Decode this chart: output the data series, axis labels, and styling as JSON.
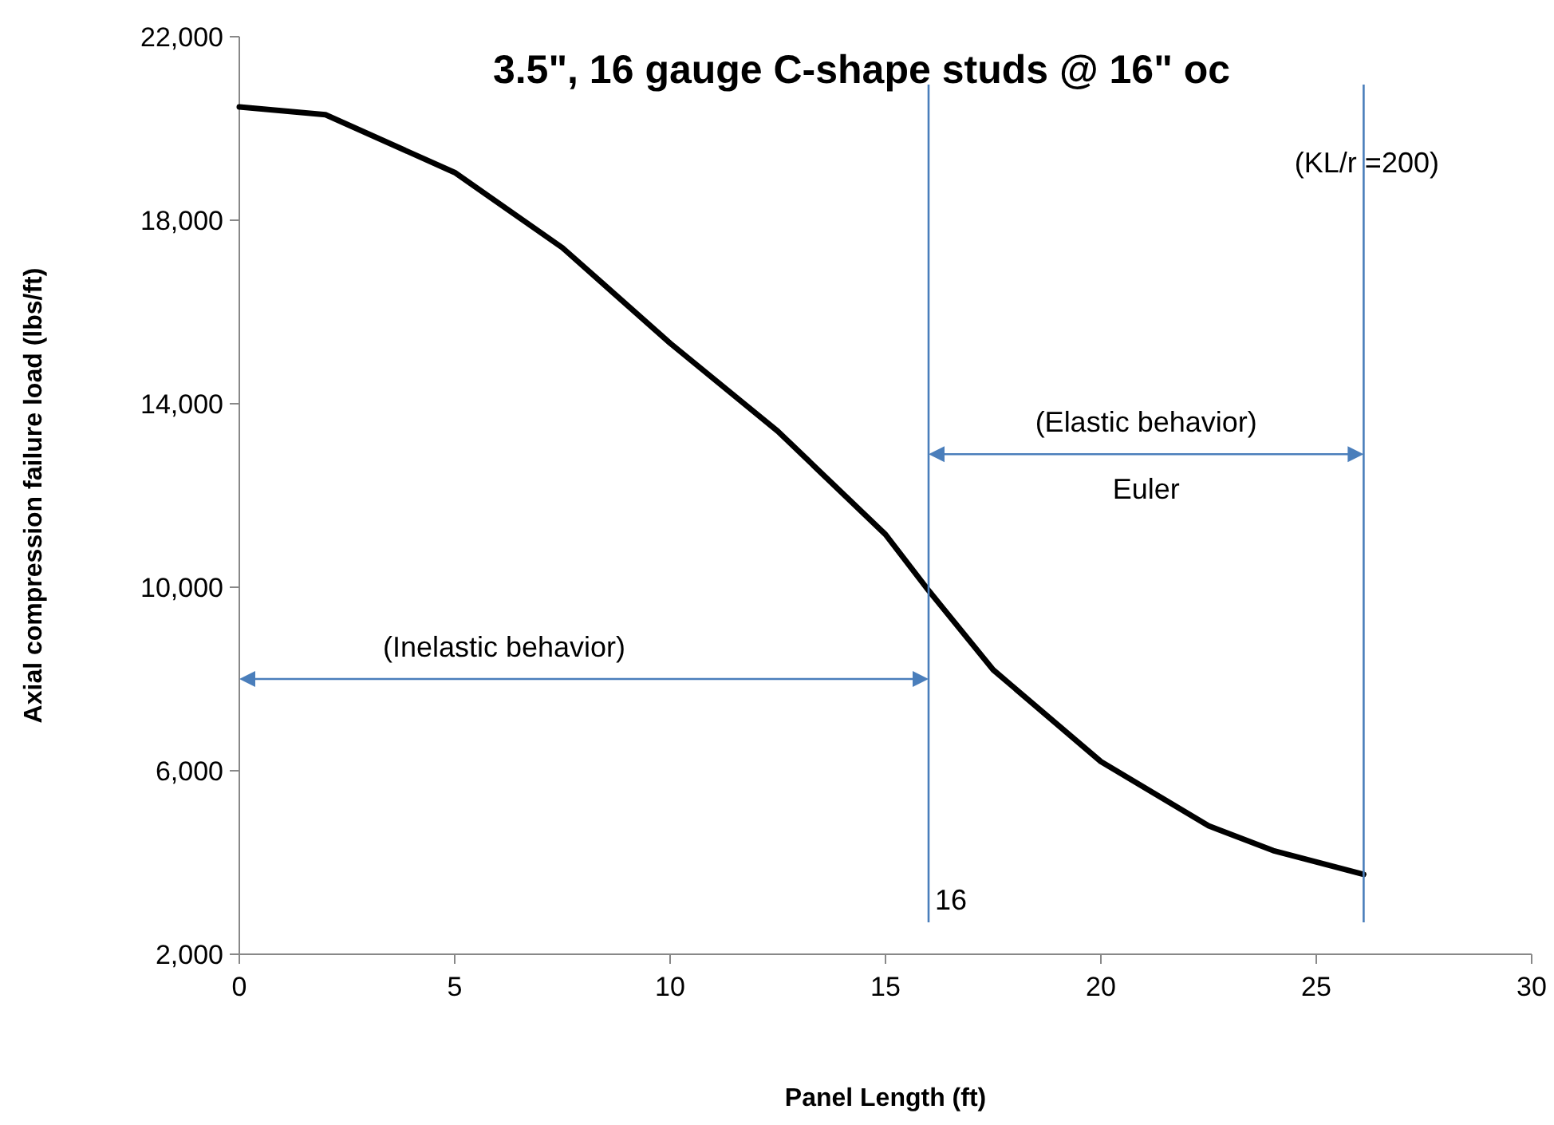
{
  "chart_data": {
    "type": "line",
    "title": "3.5\", 16 gauge C-shape studs @ 16\" oc",
    "xlabel": "Panel Length (ft)",
    "ylabel": "Axial compression failure load (lbs/ft)",
    "x": [
      0,
      2,
      5,
      7.5,
      10,
      12.5,
      15,
      16,
      17.5,
      20,
      22.5,
      24,
      26.1
    ],
    "series": [
      {
        "color": "#000000",
        "values": [
          20470,
          20300,
          19040,
          17400,
          15320,
          13400,
          11150,
          9930,
          8200,
          6200,
          4800,
          4260,
          3740
        ]
      }
    ],
    "xlim": [
      0,
      30
    ],
    "xticks": [
      0,
      5,
      10,
      15,
      20,
      25,
      30
    ],
    "ylim": [
      2000,
      22000
    ],
    "yticks": [
      {
        "value": 2000,
        "label": "2,000"
      },
      {
        "value": 6000,
        "label": "6,000"
      },
      {
        "value": 10000,
        "label": "10,000"
      },
      {
        "value": 14000,
        "label": "14,000"
      },
      {
        "value": 18000,
        "label": "18,000"
      },
      {
        "value": 22000,
        "label": "22,000"
      }
    ],
    "grid": false,
    "marker": "none",
    "line_style": "solid",
    "ref_lines": [
      {
        "axis": "x",
        "value": 16,
        "label": "16",
        "color": "#4a7ebb"
      },
      {
        "axis": "x",
        "value": 26.1,
        "color": "#4a7ebb"
      }
    ],
    "annotations": [
      "(Inelastic behavior)",
      "(Elastic behavior)",
      "Euler",
      "(KL/r =200)"
    ]
  }
}
